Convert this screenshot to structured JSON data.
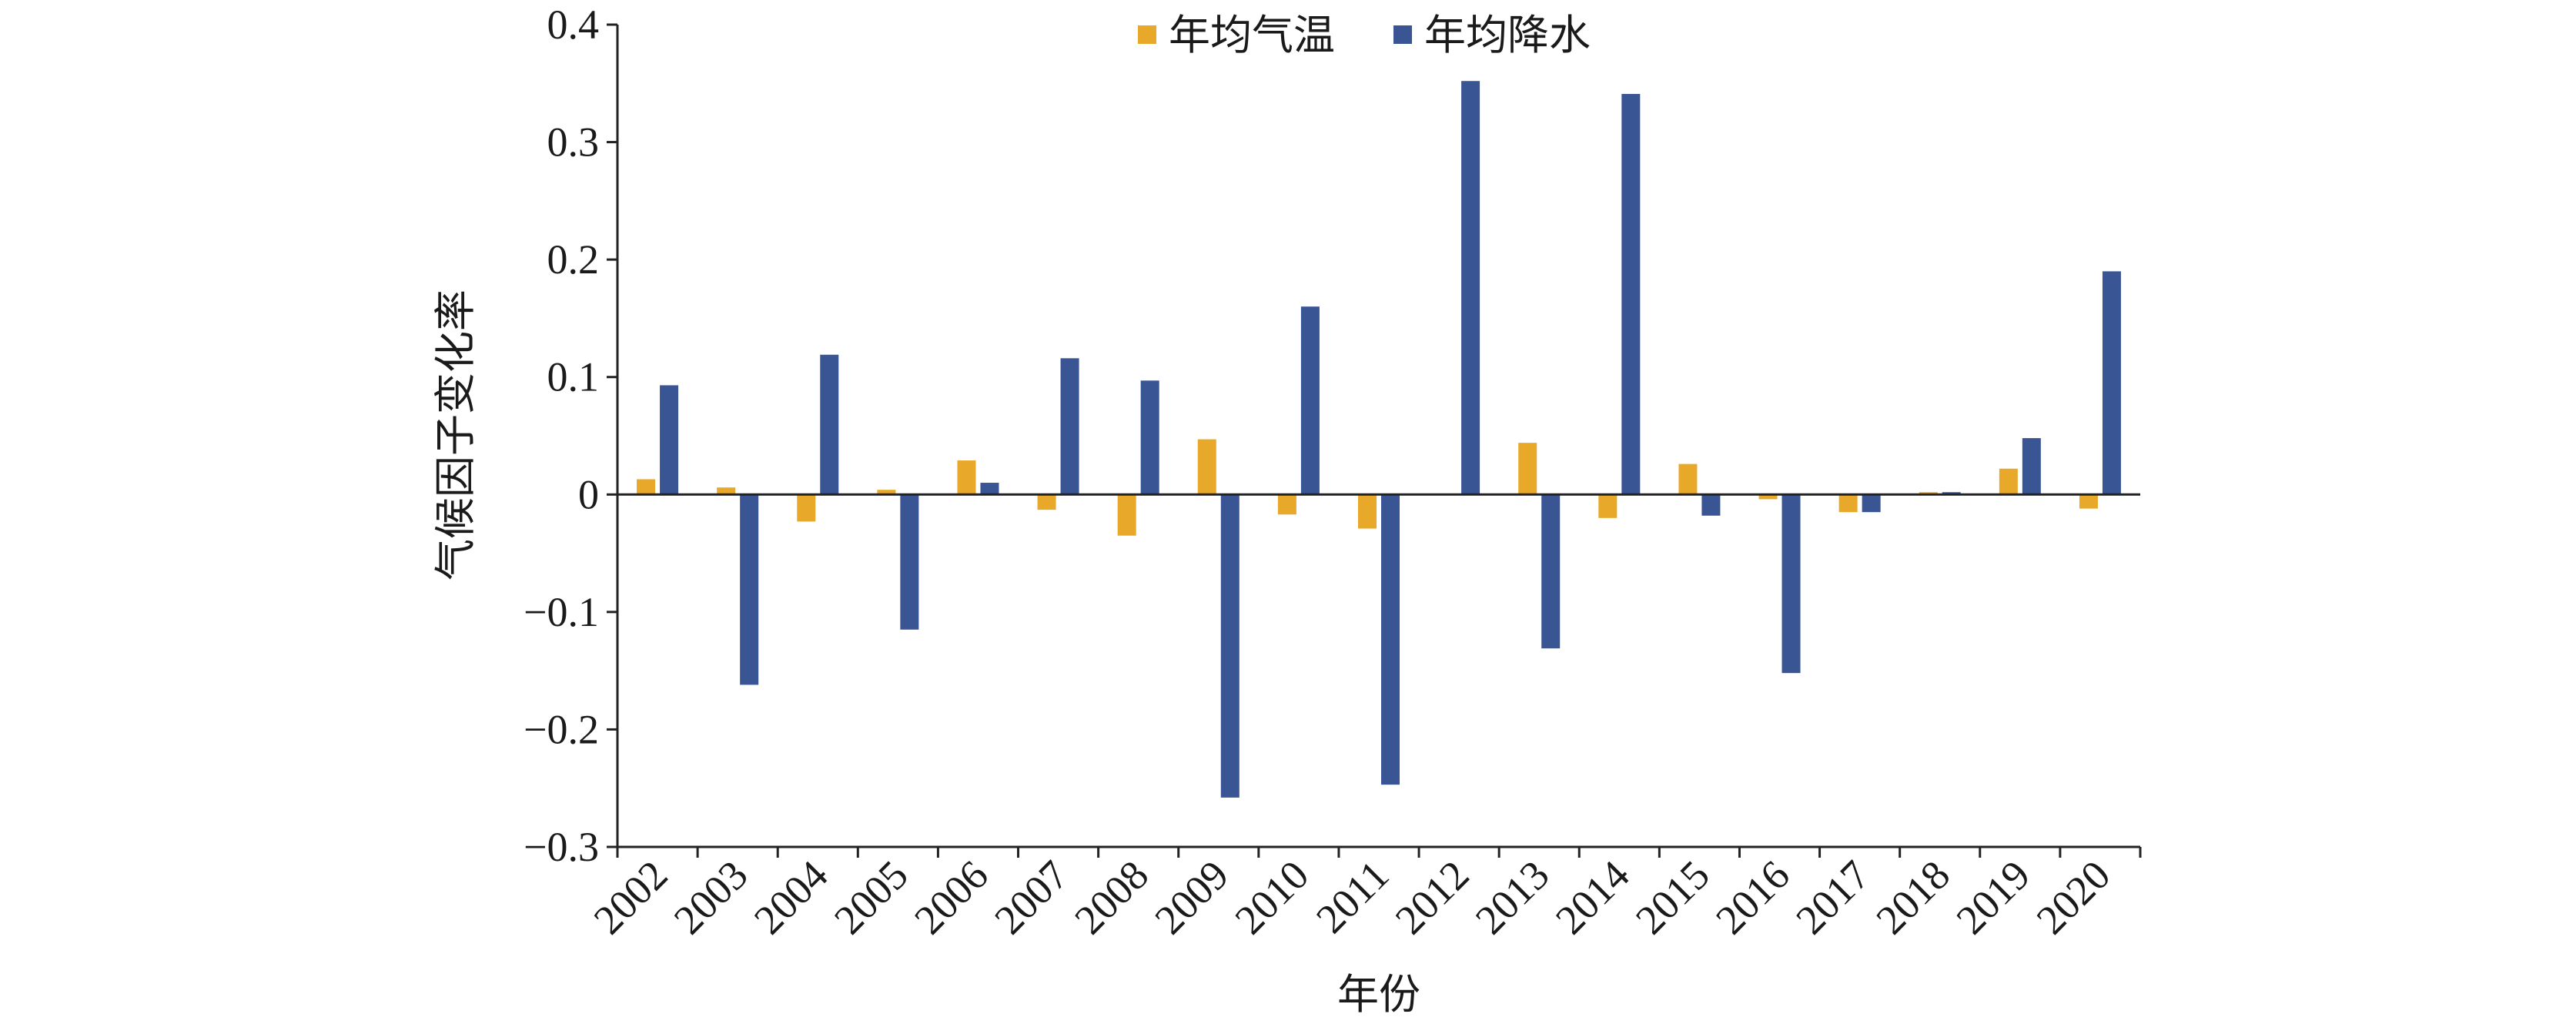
{
  "chart_data": {
    "type": "bar",
    "title": "",
    "xlabel": "年份",
    "ylabel": "气候因子变化率",
    "ylim": [
      -0.3,
      0.4
    ],
    "yticks": [
      {
        "value": 0.4,
        "label": "0.4"
      },
      {
        "value": 0.3,
        "label": "0.3"
      },
      {
        "value": 0.2,
        "label": "0.2"
      },
      {
        "value": 0.1,
        "label": "0.1"
      },
      {
        "value": 0,
        "label": "0"
      },
      {
        "value": -0.1,
        "label": "−0.1"
      },
      {
        "value": -0.2,
        "label": "−0.2"
      },
      {
        "value": -0.3,
        "label": "−0.3"
      }
    ],
    "categories": [
      "2002",
      "2003",
      "2004",
      "2005",
      "2006",
      "2007",
      "2008",
      "2009",
      "2010",
      "2011",
      "2012",
      "2013",
      "2014",
      "2015",
      "2016",
      "2017",
      "2018",
      "2019",
      "2020"
    ],
    "series": [
      {
        "name": "年均气温",
        "color": "#e8a92a",
        "values": [
          0.013,
          0.006,
          -0.023,
          0.004,
          0.029,
          -0.013,
          -0.035,
          0.047,
          -0.017,
          -0.029,
          0.0,
          0.044,
          -0.02,
          0.026,
          -0.004,
          -0.015,
          0.002,
          0.022,
          -0.012
        ]
      },
      {
        "name": "年均降水",
        "color": "#3a5593",
        "values": [
          0.093,
          -0.162,
          0.119,
          -0.115,
          0.01,
          0.116,
          0.097,
          -0.258,
          0.16,
          -0.247,
          0.352,
          -0.131,
          0.341,
          -0.018,
          -0.152,
          -0.015,
          0.002,
          0.048,
          0.19
        ]
      }
    ],
    "legend": {
      "position": "top-center"
    },
    "grid": false
  }
}
